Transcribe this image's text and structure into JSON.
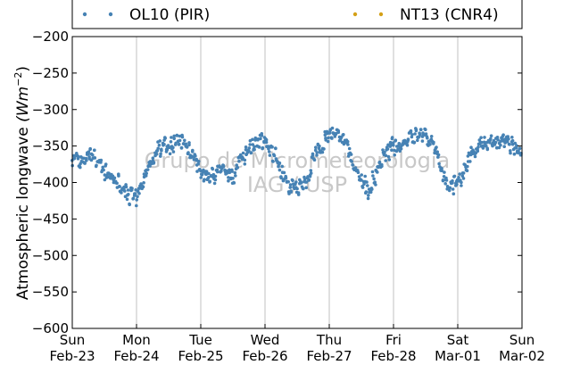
{
  "chart_data": {
    "type": "scatter",
    "title": "",
    "xlabel": "",
    "ylabel": "Atmospheric longwave (Wm^-2)",
    "ylabel_parts": {
      "text": "Atmospheric longwave ",
      "unit_base": "(Wm",
      "unit_exp": "−2",
      "unit_close": ")"
    },
    "ylim": [
      -600,
      -200
    ],
    "yticks": [
      -200,
      -250,
      -300,
      -350,
      -400,
      -450,
      -500,
      -550,
      -600
    ],
    "ytick_labels": [
      "−200",
      "−250",
      "−300",
      "−350",
      "−400",
      "−450",
      "−500",
      "−550",
      "−600"
    ],
    "xlim": [
      "2013-02-23",
      "2013-03-02"
    ],
    "xticks": [
      {
        "day": "Sun",
        "date": "Feb-23"
      },
      {
        "day": "Mon",
        "date": "Feb-24"
      },
      {
        "day": "Tue",
        "date": "Feb-25"
      },
      {
        "day": "Wed",
        "date": "Feb-26"
      },
      {
        "day": "Thu",
        "date": "Feb-27"
      },
      {
        "day": "Fri",
        "date": "Feb-28"
      },
      {
        "day": "Sat",
        "date": "Mar-01"
      },
      {
        "day": "Sun",
        "date": "Mar-02"
      }
    ],
    "grid": "x-only",
    "legend_placement": "top, outside plot",
    "series": [
      {
        "name": "OL10 (PIR)",
        "color": "#4682b4",
        "points": [
          [
            "2013-02-23T00:00",
            -365
          ],
          [
            "2013-02-23T03:00",
            -375
          ],
          [
            "2013-02-23T06:00",
            -360
          ],
          [
            "2013-02-23T09:00",
            -370
          ],
          [
            "2013-02-23T12:00",
            -385
          ],
          [
            "2013-02-23T15:00",
            -395
          ],
          [
            "2013-02-23T18:00",
            -400
          ],
          [
            "2013-02-23T21:00",
            -415
          ],
          [
            "2013-02-24T00:00",
            -425
          ],
          [
            "2013-02-24T03:00",
            -395
          ],
          [
            "2013-02-24T06:00",
            -370
          ],
          [
            "2013-02-24T09:00",
            -352
          ],
          [
            "2013-02-24T12:00",
            -348
          ],
          [
            "2013-02-24T15:00",
            -345
          ],
          [
            "2013-02-24T18:00",
            -345
          ],
          [
            "2013-02-24T21:00",
            -360
          ],
          [
            "2013-02-25T00:00",
            -390
          ],
          [
            "2013-02-25T03:00",
            -395
          ],
          [
            "2013-02-25T06:00",
            -388
          ],
          [
            "2013-02-25T09:00",
            -382
          ],
          [
            "2013-02-25T12:00",
            -392
          ],
          [
            "2013-02-25T15:00",
            -370
          ],
          [
            "2013-02-25T18:00",
            -350
          ],
          [
            "2013-02-25T21:00",
            -345
          ],
          [
            "2013-02-26T00:00",
            -345
          ],
          [
            "2013-02-26T03:00",
            -358
          ],
          [
            "2013-02-26T06:00",
            -385
          ],
          [
            "2013-02-26T09:00",
            -405
          ],
          [
            "2013-02-26T12:00",
            -410
          ],
          [
            "2013-02-26T15:00",
            -400
          ],
          [
            "2013-02-26T18:00",
            -370
          ],
          [
            "2013-02-26T21:00",
            -350
          ],
          [
            "2013-02-27T00:00",
            -330
          ],
          [
            "2013-02-27T03:00",
            -330
          ],
          [
            "2013-02-27T06:00",
            -345
          ],
          [
            "2013-02-27T09:00",
            -378
          ],
          [
            "2013-02-27T12:00",
            -400
          ],
          [
            "2013-02-27T15:00",
            -410
          ],
          [
            "2013-02-27T18:00",
            -385
          ],
          [
            "2013-02-27T21:00",
            -362
          ],
          [
            "2013-02-28T00:00",
            -350
          ],
          [
            "2013-02-28T03:00",
            -345
          ],
          [
            "2013-02-28T06:00",
            -342
          ],
          [
            "2013-02-28T09:00",
            -335
          ],
          [
            "2013-02-28T12:00",
            -335
          ],
          [
            "2013-02-28T15:00",
            -350
          ],
          [
            "2013-02-28T18:00",
            -385
          ],
          [
            "2013-02-28T21:00",
            -408
          ],
          [
            "2013-03-01T00:00",
            -400
          ],
          [
            "2013-03-01T03:00",
            -380
          ],
          [
            "2013-03-01T06:00",
            -355
          ],
          [
            "2013-03-01T09:00",
            -345
          ],
          [
            "2013-03-01T12:00",
            -345
          ],
          [
            "2013-03-01T15:00",
            -345
          ],
          [
            "2013-03-01T18:00",
            -342
          ],
          [
            "2013-03-01T21:00",
            -352
          ],
          [
            "2013-03-02T00:00",
            -360
          ]
        ]
      },
      {
        "name": "NT13 (CNR4)",
        "color": "#d4a017",
        "points": []
      }
    ],
    "watermark": [
      "Grupo de Micrometeorologia",
      "IAG / USP"
    ]
  }
}
